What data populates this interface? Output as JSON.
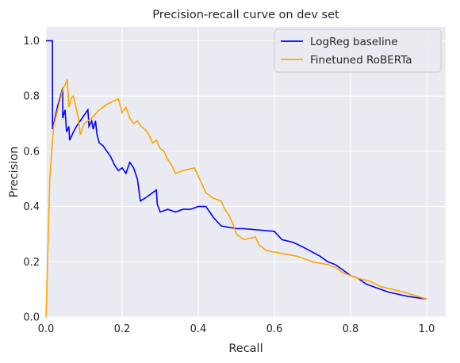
{
  "chart_data": {
    "type": "line",
    "title": "Precision-recall curve on dev set",
    "xlabel": "Recall",
    "ylabel": "Precision",
    "xlim": [
      0,
      1.05
    ],
    "ylim": [
      0,
      1.05
    ],
    "xticks": [
      "0.0",
      "0.2",
      "0.4",
      "0.6",
      "0.8",
      "1.0"
    ],
    "yticks": [
      "0.0",
      "0.2",
      "0.4",
      "0.6",
      "0.8",
      "1.0"
    ],
    "grid": true,
    "legend_position": "top-right",
    "colors": {
      "background": "#eaeaf2",
      "grid": "#ffffff"
    },
    "series": [
      {
        "name": "LogReg baseline",
        "color": "#0000ff",
        "points": [
          [
            0,
            1.0
          ],
          [
            0.017,
            1.0
          ],
          [
            0.017,
            0.68
          ],
          [
            0.03,
            0.76
          ],
          [
            0.044,
            0.83
          ],
          [
            0.044,
            0.72
          ],
          [
            0.05,
            0.75
          ],
          [
            0.054,
            0.67
          ],
          [
            0.06,
            0.69
          ],
          [
            0.062,
            0.64
          ],
          [
            0.072,
            0.67
          ],
          [
            0.08,
            0.69
          ],
          [
            0.09,
            0.71
          ],
          [
            0.1,
            0.73
          ],
          [
            0.11,
            0.75
          ],
          [
            0.113,
            0.69
          ],
          [
            0.12,
            0.71
          ],
          [
            0.124,
            0.68
          ],
          [
            0.13,
            0.71
          ],
          [
            0.134,
            0.66
          ],
          [
            0.14,
            0.63
          ],
          [
            0.15,
            0.62
          ],
          [
            0.16,
            0.6
          ],
          [
            0.17,
            0.58
          ],
          [
            0.18,
            0.55
          ],
          [
            0.19,
            0.53
          ],
          [
            0.2,
            0.54
          ],
          [
            0.21,
            0.52
          ],
          [
            0.22,
            0.56
          ],
          [
            0.23,
            0.54
          ],
          [
            0.24,
            0.5
          ],
          [
            0.248,
            0.42
          ],
          [
            0.26,
            0.43
          ],
          [
            0.27,
            0.44
          ],
          [
            0.28,
            0.45
          ],
          [
            0.29,
            0.46
          ],
          [
            0.292,
            0.41
          ],
          [
            0.3,
            0.38
          ],
          [
            0.32,
            0.39
          ],
          [
            0.34,
            0.38
          ],
          [
            0.36,
            0.39
          ],
          [
            0.38,
            0.39
          ],
          [
            0.4,
            0.4
          ],
          [
            0.42,
            0.4
          ],
          [
            0.43,
            0.38
          ],
          [
            0.44,
            0.36
          ],
          [
            0.46,
            0.33
          ],
          [
            0.5,
            0.32
          ],
          [
            0.52,
            0.32
          ],
          [
            0.6,
            0.31
          ],
          [
            0.62,
            0.28
          ],
          [
            0.65,
            0.27
          ],
          [
            0.68,
            0.25
          ],
          [
            0.72,
            0.22
          ],
          [
            0.74,
            0.2
          ],
          [
            0.76,
            0.19
          ],
          [
            0.78,
            0.17
          ],
          [
            0.8,
            0.15
          ],
          [
            0.82,
            0.14
          ],
          [
            0.84,
            0.12
          ],
          [
            0.86,
            0.11
          ],
          [
            0.9,
            0.09
          ],
          [
            0.95,
            0.075
          ],
          [
            1.0,
            0.065
          ]
        ]
      },
      {
        "name": "Finetuned RoBERTa",
        "color": "#ffa500",
        "points": [
          [
            0,
            0.0
          ],
          [
            0.01,
            0.5
          ],
          [
            0.02,
            0.69
          ],
          [
            0.045,
            0.83
          ],
          [
            0.05,
            0.84
          ],
          [
            0.056,
            0.86
          ],
          [
            0.06,
            0.76
          ],
          [
            0.066,
            0.79
          ],
          [
            0.072,
            0.8
          ],
          [
            0.085,
            0.72
          ],
          [
            0.09,
            0.66
          ],
          [
            0.1,
            0.7
          ],
          [
            0.12,
            0.72
          ],
          [
            0.14,
            0.75
          ],
          [
            0.16,
            0.77
          ],
          [
            0.19,
            0.79
          ],
          [
            0.2,
            0.74
          ],
          [
            0.21,
            0.76
          ],
          [
            0.22,
            0.72
          ],
          [
            0.23,
            0.7
          ],
          [
            0.24,
            0.71
          ],
          [
            0.25,
            0.69
          ],
          [
            0.26,
            0.68
          ],
          [
            0.27,
            0.66
          ],
          [
            0.28,
            0.63
          ],
          [
            0.29,
            0.64
          ],
          [
            0.3,
            0.61
          ],
          [
            0.31,
            0.6
          ],
          [
            0.32,
            0.57
          ],
          [
            0.33,
            0.55
          ],
          [
            0.34,
            0.52
          ],
          [
            0.36,
            0.53
          ],
          [
            0.39,
            0.54
          ],
          [
            0.4,
            0.51
          ],
          [
            0.41,
            0.48
          ],
          [
            0.42,
            0.45
          ],
          [
            0.43,
            0.44
          ],
          [
            0.44,
            0.43
          ],
          [
            0.46,
            0.42
          ],
          [
            0.47,
            0.39
          ],
          [
            0.48,
            0.37
          ],
          [
            0.49,
            0.34
          ],
          [
            0.5,
            0.3
          ],
          [
            0.52,
            0.28
          ],
          [
            0.55,
            0.29
          ],
          [
            0.56,
            0.26
          ],
          [
            0.58,
            0.24
          ],
          [
            0.62,
            0.23
          ],
          [
            0.66,
            0.22
          ],
          [
            0.7,
            0.2
          ],
          [
            0.74,
            0.19
          ],
          [
            0.76,
            0.18
          ],
          [
            0.78,
            0.16
          ],
          [
            0.8,
            0.15
          ],
          [
            0.82,
            0.14
          ],
          [
            0.85,
            0.13
          ],
          [
            0.88,
            0.11
          ],
          [
            0.94,
            0.09
          ],
          [
            1.0,
            0.065
          ]
        ]
      }
    ]
  }
}
